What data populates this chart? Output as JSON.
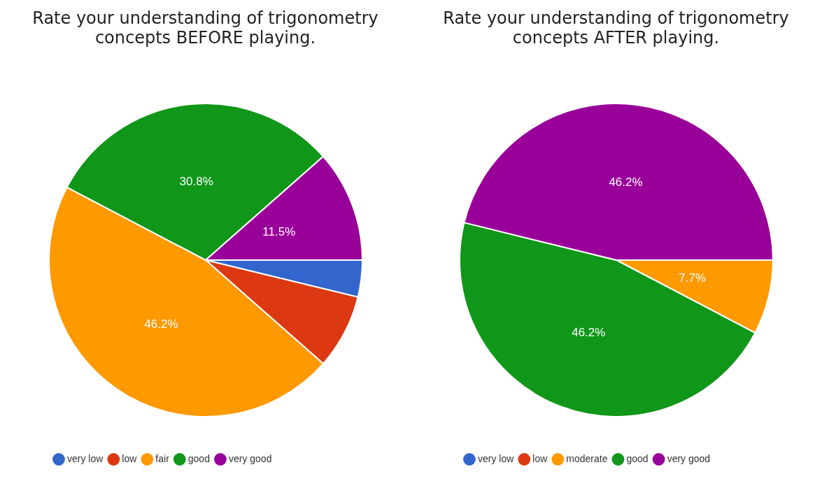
{
  "chart_data": [
    {
      "type": "pie",
      "title": "Rate your understanding of trigonometry concepts BEFORE playing.",
      "categories": [
        "very low",
        "low",
        "fair",
        "good",
        "very good"
      ],
      "values": [
        3.8,
        7.7,
        46.2,
        30.8,
        11.5
      ],
      "colors": [
        "#3366cc",
        "#dc3912",
        "#ff9900",
        "#109618",
        "#990099"
      ],
      "value_labels": [
        null,
        null,
        "46.2%",
        "30.8%",
        "11.5%"
      ],
      "legend": "bottom"
    },
    {
      "type": "pie",
      "title": "Rate your understanding of trigonometry concepts AFTER playing.",
      "categories": [
        "very low",
        "low",
        "moderate",
        "good",
        "very good"
      ],
      "values": [
        0,
        0,
        7.7,
        46.2,
        46.2
      ],
      "colors": [
        "#3366cc",
        "#dc3912",
        "#ff9900",
        "#109618",
        "#990099"
      ],
      "value_labels": [
        null,
        null,
        "7.7%",
        "46.2%",
        "46.2%"
      ],
      "legend": "bottom"
    }
  ]
}
